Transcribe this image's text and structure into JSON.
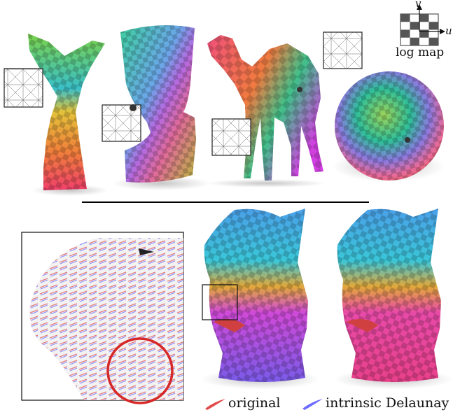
{
  "logmap": {
    "u": "u",
    "v": "v",
    "label": "log map"
  },
  "legend": {
    "original": "original",
    "intrinsic": "intrinsic Delaunay",
    "original_color": "#e24b4b",
    "intrinsic_color": "#6b6bff"
  },
  "colors": {
    "highlight_circle": "#d62828",
    "divider": "#000000"
  },
  "figures": [
    "angel-statue-icon",
    "nefertiti-bust-icon",
    "camel-icon",
    "sphere-icon",
    "lion-head-original-icon",
    "lion-head-intrinsic-icon"
  ]
}
